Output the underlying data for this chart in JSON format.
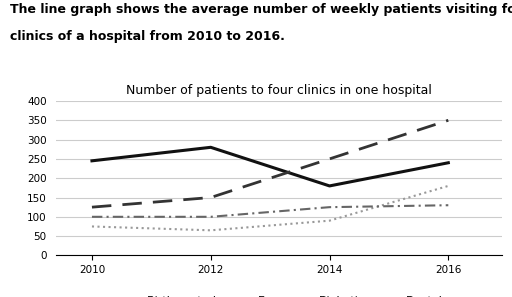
{
  "title": "Number of patients to four clinics in one hospital",
  "desc_line1": "The line graph shows the average number of weekly patients visiting four",
  "desc_line2": "clinics of a hospital from 2010 to 2016.",
  "years": [
    2010,
    2012,
    2014,
    2016
  ],
  "series": {
    "Birth control": [
      245,
      280,
      180,
      240
    ],
    "Eye": [
      125,
      150,
      250,
      350
    ],
    "Diabetic": [
      75,
      65,
      90,
      180
    ],
    "Dental": [
      100,
      100,
      125,
      130
    ]
  },
  "styles": {
    "Birth control": {
      "color": "#111111",
      "linestyle": "-",
      "linewidth": 2.2,
      "dashes": null
    },
    "Eye": {
      "color": "#333333",
      "linestyle": "--",
      "linewidth": 2.0,
      "dashes": [
        7,
        4
      ]
    },
    "Diabetic": {
      "color": "#999999",
      "linestyle": ":",
      "linewidth": 1.5,
      "dashes": null
    },
    "Dental": {
      "color": "#666666",
      "linestyle": "-.",
      "linewidth": 1.5,
      "dashes": [
        5,
        2,
        1,
        2
      ]
    }
  },
  "ylim": [
    0,
    400
  ],
  "yticks": [
    0,
    50,
    100,
    150,
    200,
    250,
    300,
    350,
    400
  ],
  "xticks": [
    2010,
    2012,
    2014,
    2016
  ],
  "background_color": "#ffffff",
  "grid_color": "#cccccc",
  "title_fontsize": 9,
  "desc_fontsize": 9,
  "legend_fontsize": 8,
  "tick_fontsize": 7.5
}
